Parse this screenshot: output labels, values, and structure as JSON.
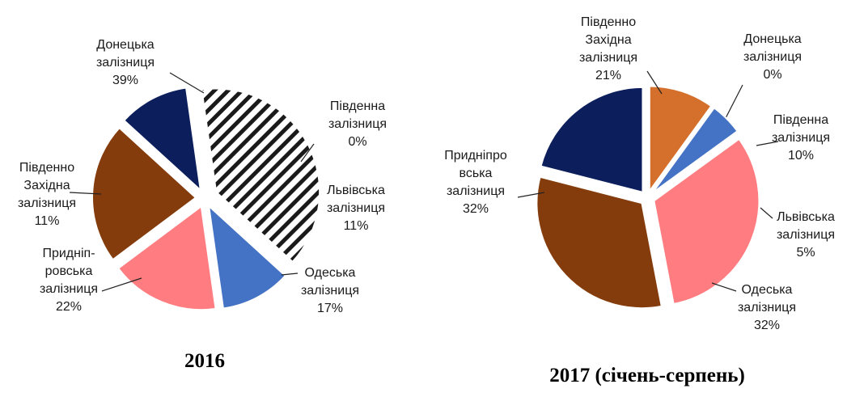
{
  "colors": {
    "donetska": "#1a1a1a",
    "pivdenna": "#d4702b",
    "lvivska": "#4472c4",
    "odeska": "#ff7c80",
    "prydniprovska": "#843c0c",
    "pivdenno_zakhidna": "#0c1f5c"
  },
  "chart_data": [
    {
      "type": "pie",
      "title": "2016",
      "slices": [
        {
          "key": "donetska",
          "lines": [
            "Донецька",
            "залізниця",
            "39%"
          ],
          "value": 39,
          "pattern": "hatch"
        },
        {
          "key": "pivdenna",
          "lines": [
            "Південна",
            "залізниця",
            "0%"
          ],
          "value": 0
        },
        {
          "key": "lvivska",
          "lines": [
            "Львівська",
            "залізниця",
            "11%"
          ],
          "value": 11
        },
        {
          "key": "odeska",
          "lines": [
            "Одеська",
            "залізниця",
            "17%"
          ],
          "value": 17
        },
        {
          "key": "prydniprovska",
          "lines": [
            "Придніп-",
            "ровська",
            "залізниця",
            "22%"
          ],
          "value": 22
        },
        {
          "key": "pivdenno_zakhidna",
          "lines": [
            "Південно",
            "Західна",
            "залізниця",
            "11%"
          ],
          "value": 11
        }
      ]
    },
    {
      "type": "pie",
      "title": "2017 (січень-серпень)",
      "slices": [
        {
          "key": "donetska",
          "lines": [
            "Донецька",
            "залізниця",
            "0%"
          ],
          "value": 0
        },
        {
          "key": "pivdenna",
          "lines": [
            "Південна",
            "залізниця",
            "10%"
          ],
          "value": 10
        },
        {
          "key": "lvivska",
          "lines": [
            "Львівська",
            "залізниця",
            "5%"
          ],
          "value": 5
        },
        {
          "key": "odeska",
          "lines": [
            "Одеська",
            "залізниця",
            "32%"
          ],
          "value": 32
        },
        {
          "key": "prydniprovska",
          "lines": [
            "Придніпро",
            "вська",
            "залізниця",
            "32%"
          ],
          "value": 32
        },
        {
          "key": "pivdenno_zakhidna",
          "lines": [
            "Південно",
            "Західна",
            "залізниця",
            "21%"
          ],
          "value": 21
        }
      ]
    }
  ]
}
